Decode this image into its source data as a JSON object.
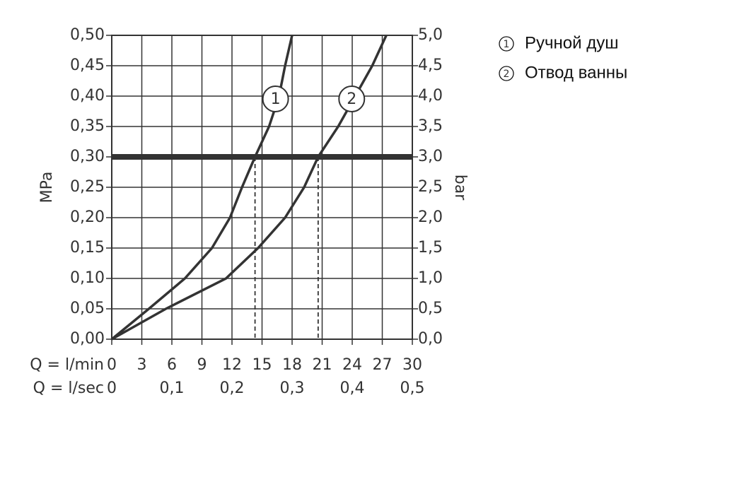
{
  "chart_data": {
    "type": "line",
    "ylabel": "MPa",
    "y2label": "bar",
    "xlabel": "Q = l/min",
    "x2label": "Q = l/sec",
    "xlim": [
      0,
      30
    ],
    "xticks": [
      0,
      3,
      6,
      9,
      12,
      15,
      18,
      21,
      24,
      27,
      30
    ],
    "x2lim": [
      0,
      0.5
    ],
    "x2ticks": [
      {
        "value": 0,
        "label": "0"
      },
      {
        "value": 0.1,
        "label": "0,1"
      },
      {
        "value": 0.2,
        "label": "0,2"
      },
      {
        "value": 0.3,
        "label": "0,3"
      },
      {
        "value": 0.4,
        "label": "0,4"
      },
      {
        "value": 0.5,
        "label": "0,5"
      }
    ],
    "ylim": [
      0,
      0.5
    ],
    "yticks": [
      {
        "value": 0,
        "label": "0,00"
      },
      {
        "value": 0.05,
        "label": "0,05"
      },
      {
        "value": 0.1,
        "label": "0,10"
      },
      {
        "value": 0.15,
        "label": "0,15"
      },
      {
        "value": 0.2,
        "label": "0,20"
      },
      {
        "value": 0.25,
        "label": "0,25"
      },
      {
        "value": 0.3,
        "label": "0,30"
      },
      {
        "value": 0.35,
        "label": "0,35"
      },
      {
        "value": 0.4,
        "label": "0,40"
      },
      {
        "value": 0.45,
        "label": "0,45"
      },
      {
        "value": 0.5,
        "label": "0,50"
      }
    ],
    "y2lim": [
      0,
      5
    ],
    "y2ticks": [
      {
        "value": 0,
        "label": "0,0"
      },
      {
        "value": 0.5,
        "label": "0,5"
      },
      {
        "value": 1,
        "label": "1,0"
      },
      {
        "value": 1.5,
        "label": "1,5"
      },
      {
        "value": 2,
        "label": "2,0"
      },
      {
        "value": 2.5,
        "label": "2,5"
      },
      {
        "value": 3,
        "label": "3,0"
      },
      {
        "value": 3.5,
        "label": "3,5"
      },
      {
        "value": 4,
        "label": "4,0"
      },
      {
        "value": 4.5,
        "label": "4,5"
      },
      {
        "value": 5,
        "label": "5,0"
      }
    ],
    "grid": true,
    "reference_y": 0.3,
    "reference_x": [
      14.3,
      20.6
    ],
    "series": [
      {
        "name": "Ручной душ",
        "label": "1",
        "color": "#333333",
        "x": [
          0,
          3.7,
          7.3,
          10,
          11.8,
          13,
          14.3,
          15.7,
          16.7,
          17.3,
          18
        ],
        "y": [
          0,
          0.05,
          0.1,
          0.15,
          0.2,
          0.25,
          0.3,
          0.35,
          0.4,
          0.45,
          0.5
        ]
      },
      {
        "name": "Отвод ванны",
        "label": "2",
        "color": "#333333",
        "x": [
          0,
          5.4,
          11.4,
          14.6,
          17.3,
          19.2,
          20.6,
          22.6,
          24.3,
          26,
          27.4
        ],
        "y": [
          0,
          0.05,
          0.1,
          0.15,
          0.2,
          0.25,
          0.3,
          0.35,
          0.4,
          0.45,
          0.5
        ]
      }
    ]
  }
}
